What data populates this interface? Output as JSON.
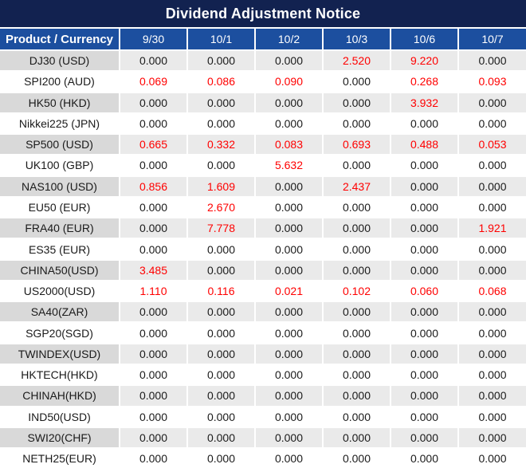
{
  "colors": {
    "title_bg": "#122250",
    "header_bg": "#1c4f9f",
    "header_text": "#ffffff",
    "alt_row_label_bg": "#d9d9d9",
    "alt_row_value_bg": "#eaeaea",
    "plain_row_bg": "#ffffff",
    "value_text": "#1a1a1a",
    "highlight_text": "#ff0000",
    "grid_line": "#ffffff"
  },
  "chart_data": {
    "type": "table",
    "title": "Dividend Adjustment Notice",
    "columns": [
      "Product / Currency",
      "9/30",
      "10/1",
      "10/2",
      "10/3",
      "10/6",
      "10/7"
    ],
    "rows": [
      {
        "product": "DJ30 (USD)",
        "values": [
          "0.000",
          "0.000",
          "0.000",
          "2.520",
          "9.220",
          "0.000"
        ],
        "red": [
          0,
          0,
          0,
          1,
          1,
          0
        ]
      },
      {
        "product": "SPI200 (AUD)",
        "values": [
          "0.069",
          "0.086",
          "0.090",
          "0.000",
          "0.268",
          "0.093"
        ],
        "red": [
          1,
          1,
          1,
          0,
          1,
          1
        ]
      },
      {
        "product": "HK50 (HKD)",
        "values": [
          "0.000",
          "0.000",
          "0.000",
          "0.000",
          "3.932",
          "0.000"
        ],
        "red": [
          0,
          0,
          0,
          0,
          1,
          0
        ]
      },
      {
        "product": "Nikkei225 (JPN)",
        "values": [
          "0.000",
          "0.000",
          "0.000",
          "0.000",
          "0.000",
          "0.000"
        ],
        "red": [
          0,
          0,
          0,
          0,
          0,
          0
        ]
      },
      {
        "product": "SP500 (USD)",
        "values": [
          "0.665",
          "0.332",
          "0.083",
          "0.693",
          "0.488",
          "0.053"
        ],
        "red": [
          1,
          1,
          1,
          1,
          1,
          1
        ]
      },
      {
        "product": "UK100 (GBP)",
        "values": [
          "0.000",
          "0.000",
          "5.632",
          "0.000",
          "0.000",
          "0.000"
        ],
        "red": [
          0,
          0,
          1,
          0,
          0,
          0
        ]
      },
      {
        "product": "NAS100 (USD)",
        "values": [
          "0.856",
          "1.609",
          "0.000",
          "2.437",
          "0.000",
          "0.000"
        ],
        "red": [
          1,
          1,
          0,
          1,
          0,
          0
        ]
      },
      {
        "product": "EU50 (EUR)",
        "values": [
          "0.000",
          "2.670",
          "0.000",
          "0.000",
          "0.000",
          "0.000"
        ],
        "red": [
          0,
          1,
          0,
          0,
          0,
          0
        ]
      },
      {
        "product": "FRA40 (EUR)",
        "values": [
          "0.000",
          "7.778",
          "0.000",
          "0.000",
          "0.000",
          "1.921"
        ],
        "red": [
          0,
          1,
          0,
          0,
          0,
          1
        ]
      },
      {
        "product": "ES35 (EUR)",
        "values": [
          "0.000",
          "0.000",
          "0.000",
          "0.000",
          "0.000",
          "0.000"
        ],
        "red": [
          0,
          0,
          0,
          0,
          0,
          0
        ]
      },
      {
        "product": "CHINA50(USD)",
        "values": [
          "3.485",
          "0.000",
          "0.000",
          "0.000",
          "0.000",
          "0.000"
        ],
        "red": [
          1,
          0,
          0,
          0,
          0,
          0
        ]
      },
      {
        "product": "US2000(USD)",
        "values": [
          "1.110",
          "0.116",
          "0.021",
          "0.102",
          "0.060",
          "0.068"
        ],
        "red": [
          1,
          1,
          1,
          1,
          1,
          1
        ]
      },
      {
        "product": "SA40(ZAR)",
        "values": [
          "0.000",
          "0.000",
          "0.000",
          "0.000",
          "0.000",
          "0.000"
        ],
        "red": [
          0,
          0,
          0,
          0,
          0,
          0
        ]
      },
      {
        "product": "SGP20(SGD)",
        "values": [
          "0.000",
          "0.000",
          "0.000",
          "0.000",
          "0.000",
          "0.000"
        ],
        "red": [
          0,
          0,
          0,
          0,
          0,
          0
        ]
      },
      {
        "product": "TWINDEX(USD)",
        "values": [
          "0.000",
          "0.000",
          "0.000",
          "0.000",
          "0.000",
          "0.000"
        ],
        "red": [
          0,
          0,
          0,
          0,
          0,
          0
        ]
      },
      {
        "product": "HKTECH(HKD)",
        "values": [
          "0.000",
          "0.000",
          "0.000",
          "0.000",
          "0.000",
          "0.000"
        ],
        "red": [
          0,
          0,
          0,
          0,
          0,
          0
        ]
      },
      {
        "product": "CHINAH(HKD)",
        "values": [
          "0.000",
          "0.000",
          "0.000",
          "0.000",
          "0.000",
          "0.000"
        ],
        "red": [
          0,
          0,
          0,
          0,
          0,
          0
        ]
      },
      {
        "product": "IND50(USD)",
        "values": [
          "0.000",
          "0.000",
          "0.000",
          "0.000",
          "0.000",
          "0.000"
        ],
        "red": [
          0,
          0,
          0,
          0,
          0,
          0
        ]
      },
      {
        "product": "SWI20(CHF)",
        "values": [
          "0.000",
          "0.000",
          "0.000",
          "0.000",
          "0.000",
          "0.000"
        ],
        "red": [
          0,
          0,
          0,
          0,
          0,
          0
        ]
      },
      {
        "product": "NETH25(EUR)",
        "values": [
          "0.000",
          "0.000",
          "0.000",
          "0.000",
          "0.000",
          "0.000"
        ],
        "red": [
          0,
          0,
          0,
          0,
          0,
          0
        ]
      }
    ]
  }
}
